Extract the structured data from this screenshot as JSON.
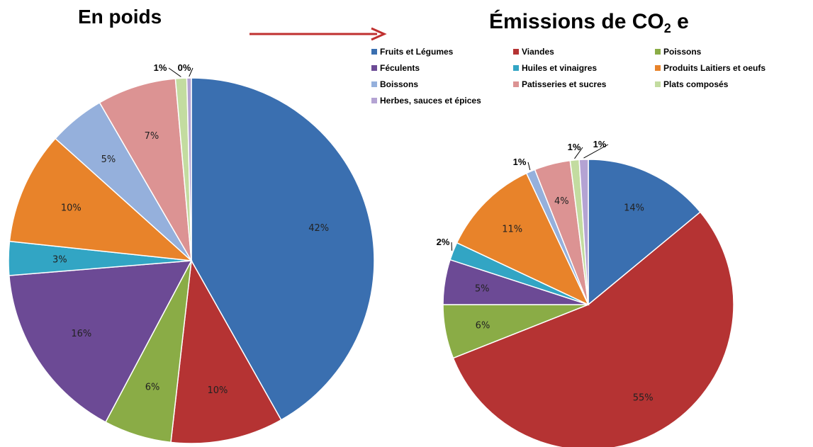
{
  "chart_data": [
    {
      "type": "pie",
      "title": "En poids",
      "categories": [
        "Fruits et Légumes",
        "Viandes",
        "Poissons",
        "Féculents",
        "Huiles et vinaigres",
        "Produits Laitiers et oeufs",
        "Boissons",
        "Patisseries et sucres",
        "Plats composés",
        "Herbes, sauces et épices"
      ],
      "values": [
        42,
        10,
        6,
        16,
        3,
        10,
        5,
        7,
        1,
        0.4
      ],
      "labels": [
        "42%",
        "10%",
        "6%",
        "16%",
        "3%",
        "10%",
        "5%",
        "7%",
        "1%",
        "0%"
      ]
    },
    {
      "type": "pie",
      "title_main": "Émissions de CO",
      "title_sub": "2",
      "title_tail": " e",
      "categories": [
        "Fruits et Légumes",
        "Viandes",
        "Poissons",
        "Féculents",
        "Huiles et vinaigres",
        "Produits Laitiers et oeufs",
        "Boissons",
        "Patisseries et sucres",
        "Plats composés",
        "Herbes, sauces et épices"
      ],
      "values": [
        14,
        55,
        6,
        5,
        2,
        11,
        1,
        4,
        1,
        1
      ],
      "labels": [
        "14%",
        "55%",
        "6%",
        "5%",
        "2%",
        "11%",
        "1%",
        "4%",
        "1%",
        "1%"
      ]
    }
  ],
  "legend": [
    {
      "label": "Fruits et Légumes",
      "color": "#3a6fb0"
    },
    {
      "label": "Viandes",
      "color": "#b53333"
    },
    {
      "label": "Poissons",
      "color": "#8aac46"
    },
    {
      "label": "Féculents",
      "color": "#6c4a95"
    },
    {
      "label": "Huiles et vinaigres",
      "color": "#32a5c4"
    },
    {
      "label": "Produits Laitiers et oeufs",
      "color": "#e8832a"
    },
    {
      "label": "Boissons",
      "color": "#95b0dc"
    },
    {
      "label": "Patisseries et sucres",
      "color": "#dc9393"
    },
    {
      "label": "Plats composés",
      "color": "#c3dca0"
    },
    {
      "label": "Herbes, sauces  et épices",
      "color": "#b4a3d3"
    }
  ],
  "arrow_color": "#c0302f"
}
